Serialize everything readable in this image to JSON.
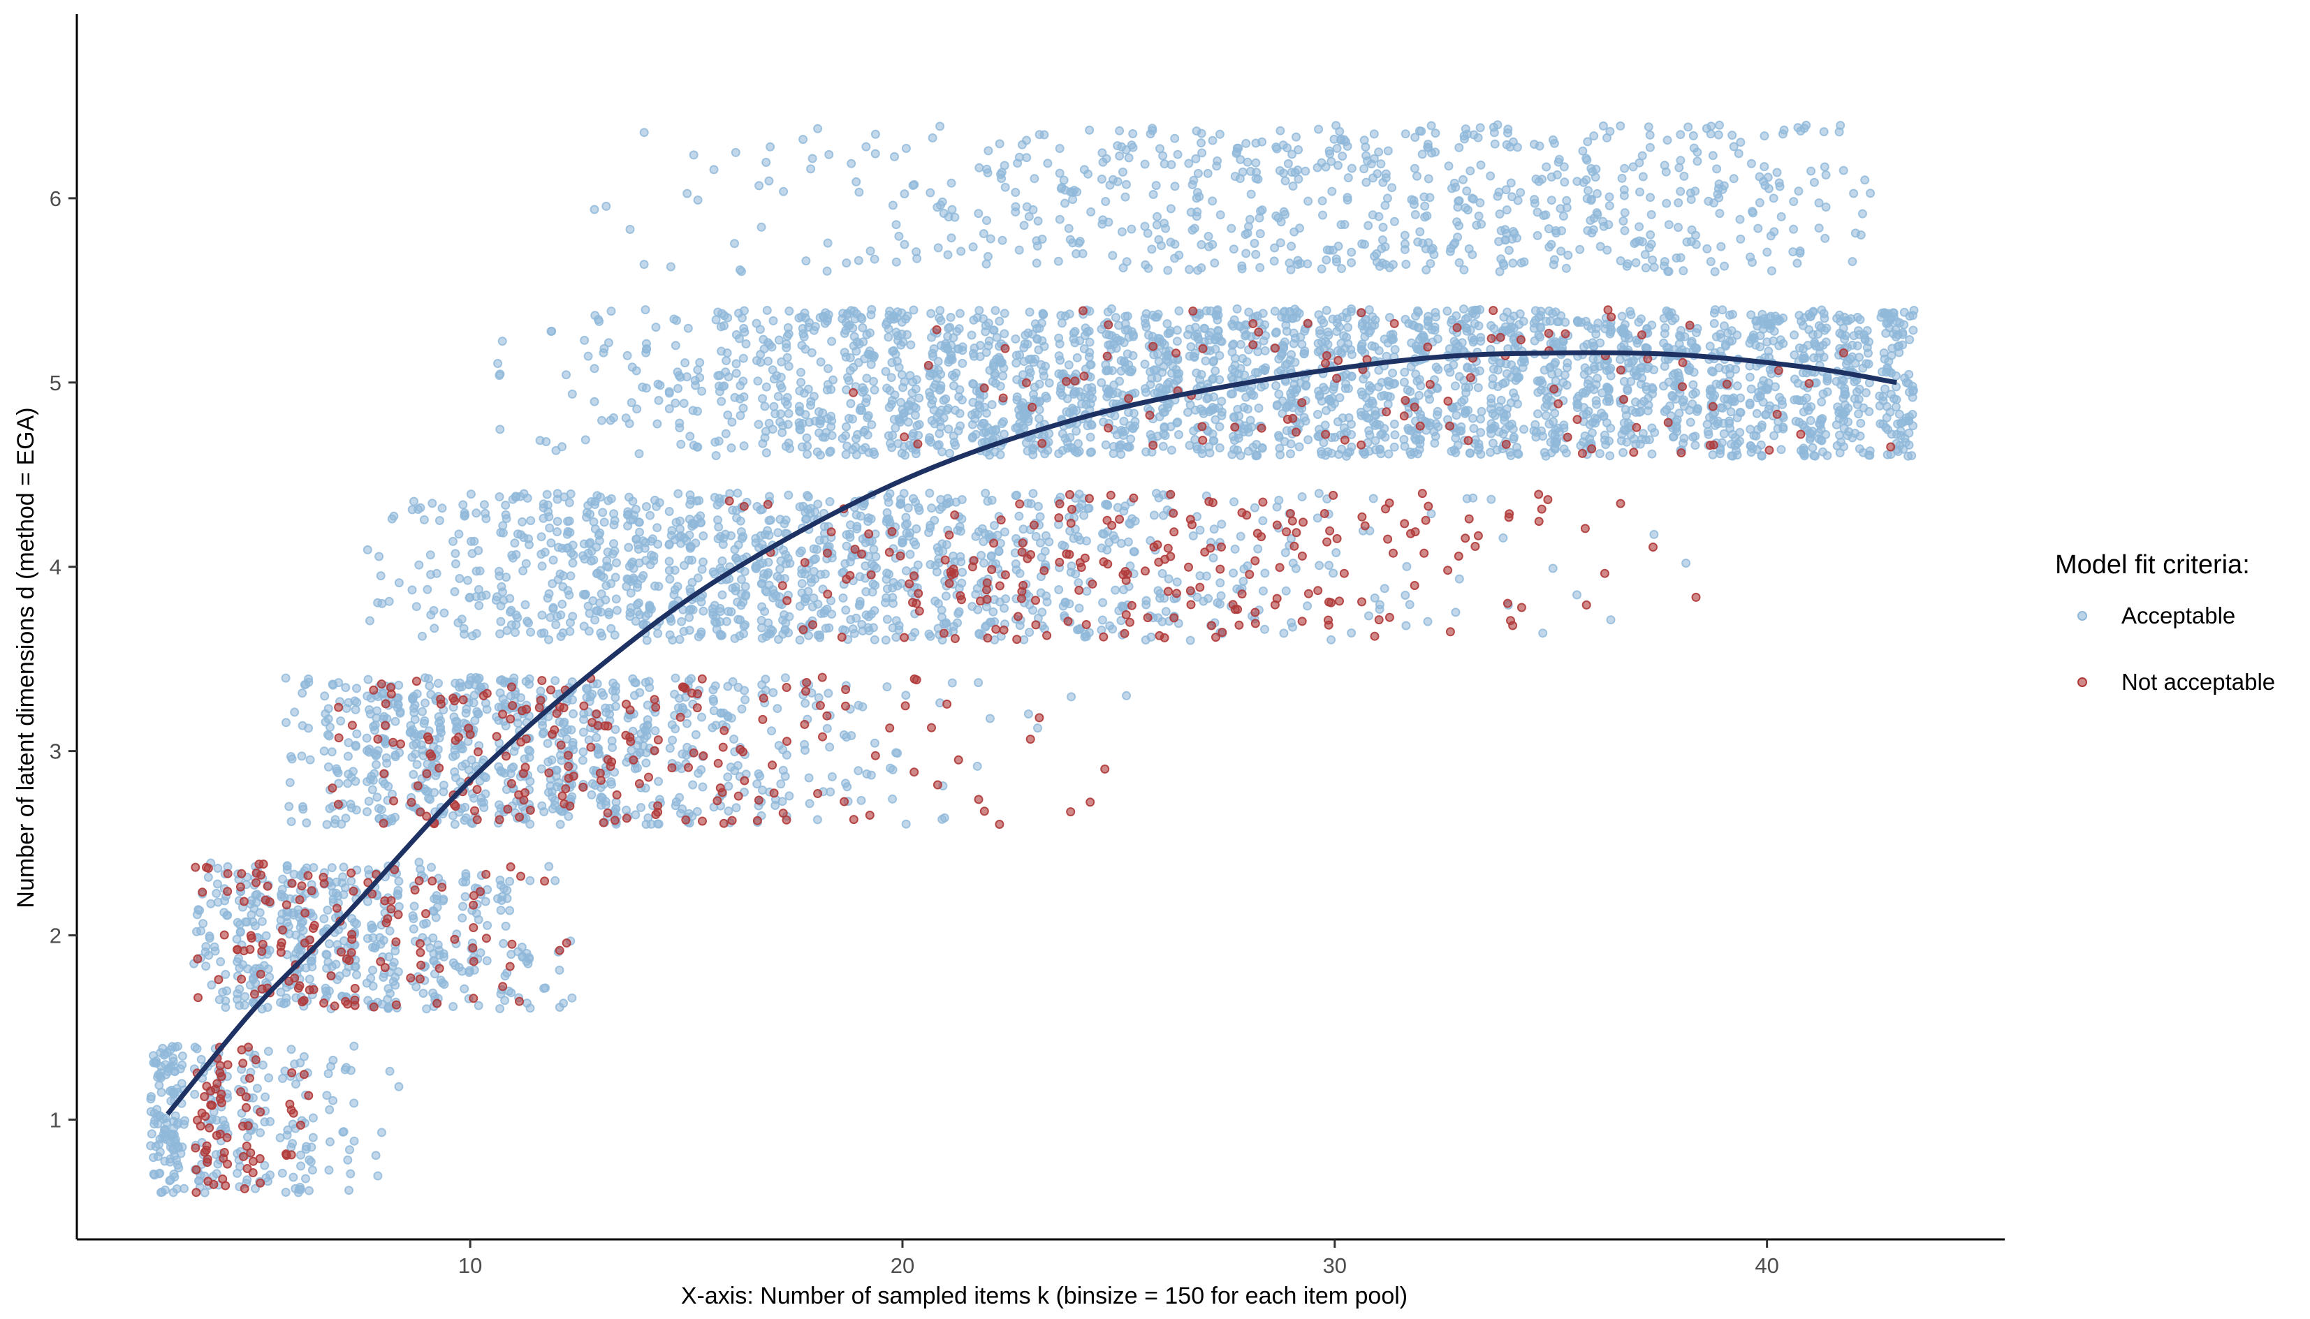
{
  "chart_data": {
    "type": "scatter",
    "xlabel": "X-axis: Number of sampled items k (binsize = 150 for each item pool)",
    "ylabel": "Number of latent dimensions d (method = EGA)",
    "xlim": [
      0.9,
      45.5
    ],
    "ylim": [
      0.35,
      7.0
    ],
    "x_ticks": [
      10,
      20,
      30,
      40
    ],
    "y_ticks": [
      1,
      2,
      3,
      4,
      5,
      6
    ],
    "grid": false,
    "legend": {
      "title": "Model fit criteria:",
      "position": "right",
      "entries": [
        {
          "label": "Acceptable",
          "color": "#8fb8d9"
        },
        {
          "label": "Not acceptable",
          "color": "#b03a3a"
        }
      ]
    },
    "series": [
      {
        "name": "Acceptable",
        "color": "#8fb8d9",
        "jitter": "±0.4 around integer d",
        "groups": [
          {
            "d": 1,
            "x_range": [
              3,
              8
            ],
            "density": [
              120,
              60,
              45,
              40,
              20,
              5
            ]
          },
          {
            "d": 2,
            "x_range": [
              4,
              12
            ],
            "density": [
              40,
              80,
              90,
              80,
              70,
              55,
              40,
              35,
              10
            ]
          },
          {
            "d": 3,
            "x_range": [
              6,
              25
            ],
            "density": [
              20,
              50,
              80,
              90,
              95,
              90,
              85,
              75,
              60,
              50,
              40,
              30,
              20,
              15,
              8,
              5,
              3,
              2,
              1,
              1
            ]
          },
          {
            "d": 4,
            "x_range": [
              8,
              38
            ],
            "density": [
              10,
              20,
              35,
              50,
              60,
              70,
              75,
              80,
              80,
              80,
              78,
              75,
              70,
              65,
              55,
              50,
              45,
              40,
              32,
              25,
              20,
              15,
              10,
              8,
              6,
              4,
              3,
              2,
              2,
              1,
              1
            ]
          },
          {
            "d": 5,
            "x_range": [
              11,
              43
            ],
            "density": [
              5,
              8,
              15,
              20,
              30,
              45,
              55,
              70,
              80,
              85,
              90,
              95,
              100,
              100,
              100,
              100,
              100,
              100,
              100,
              100,
              100,
              100,
              100,
              100,
              100,
              100,
              100,
              100,
              100,
              100,
              100,
              100,
              100
            ]
          },
          {
            "d": 6,
            "x_range": [
              13,
              42
            ],
            "density": [
              2,
              3,
              4,
              5,
              6,
              8,
              10,
              12,
              15,
              18,
              22,
              25,
              28,
              30,
              32,
              34,
              36,
              38,
              38,
              38,
              38,
              38,
              36,
              35,
              34,
              32,
              28,
              25,
              20,
              10
            ]
          }
        ]
      },
      {
        "name": "Not acceptable",
        "color": "#b03a3a",
        "jitter": "±0.4 around integer d",
        "groups": [
          {
            "d": 1,
            "x_range": [
              4,
              6
            ],
            "density": [
              40,
              20,
              10
            ]
          },
          {
            "d": 2,
            "x_range": [
              4,
              12
            ],
            "density": [
              10,
              25,
              25,
              20,
              15,
              12,
              10,
              6,
              3
            ]
          },
          {
            "d": 3,
            "x_range": [
              7,
              25
            ],
            "density": [
              5,
              12,
              15,
              18,
              20,
              20,
              18,
              16,
              14,
              12,
              10,
              8,
              6,
              5,
              4,
              3,
              2,
              2,
              1
            ]
          },
          {
            "d": 4,
            "x_range": [
              16,
              38
            ],
            "density": [
              2,
              4,
              6,
              8,
              10,
              12,
              14,
              15,
              16,
              16,
              16,
              15,
              14,
              13,
              12,
              10,
              8,
              7,
              6,
              4,
              3,
              2,
              1
            ]
          },
          {
            "d": 5,
            "x_range": [
              19,
              43
            ],
            "density": [
              1,
              2,
              2,
              3,
              3,
              4,
              4,
              5,
              5,
              5,
              6,
              6,
              6,
              6,
              6,
              6,
              6,
              6,
              6,
              5,
              4,
              3,
              2,
              1,
              1
            ]
          }
        ]
      }
    ],
    "trend_line": {
      "color": "#1d3163",
      "x": [
        3,
        5,
        7,
        10,
        13,
        16,
        20,
        24,
        28,
        32,
        35,
        38,
        41,
        43
      ],
      "y": [
        1.03,
        1.6,
        2.08,
        2.84,
        3.46,
        3.97,
        4.47,
        4.8,
        5.0,
        5.13,
        5.16,
        5.15,
        5.08,
        5.0
      ]
    }
  }
}
